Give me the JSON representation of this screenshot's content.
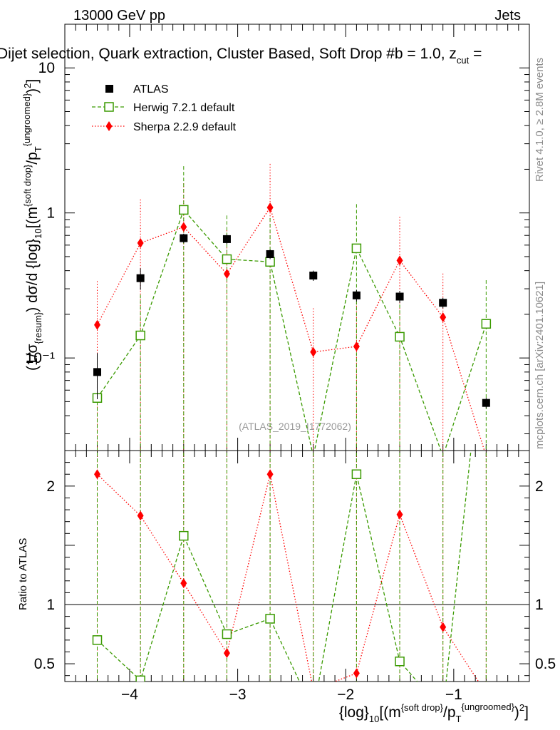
{
  "header": {
    "left": "13000 GeV pp",
    "right": "Jets",
    "title": "Dijet selection, Quark extraction, Cluster Based, Soft Drop #b = 1.0, z",
    "title_sub": "cut",
    "title_tail": " ="
  },
  "side_labels": {
    "rivet": "Rivet 4.1.0, ≥ 2.8M events",
    "mcplots": "mcplots.cern.ch [arXiv:2401.10621]"
  },
  "watermark": "(ATLAS_2019_I1772062)",
  "legend": {
    "atlas": "ATLAS",
    "herwig": "Herwig 7.2.1 default",
    "sherpa": "Sherpa 2.2.9 default"
  },
  "y_axis_main": {
    "p1": "(1/σ",
    "p1_sub": "{resum}",
    "p2": ") dσ/d {log}",
    "p2_sub": "10",
    "p3": "[(m",
    "p3_sup": "{soft drop}",
    "p4": "/p",
    "p4_sub": "T",
    "p4_sup": "{ungroomed}",
    "p5": ")",
    "p5_sup": "2",
    "p6": "]"
  },
  "y_axis_ratio": "Ratio to ATLAS",
  "x_axis": {
    "p1": "{log}",
    "p1_sub": "10",
    "p2": "[(m",
    "p2_sup": "{soft drop}",
    "p3": "/p",
    "p3_sub": "T",
    "p3_sup": "{ungroomed}",
    "p4": ")",
    "p4_sup": "2",
    "p5": "]"
  },
  "colors": {
    "atlas": "#000000",
    "herwig": "#3a9a00",
    "sherpa": "#ff0000",
    "vline": "#8b4513"
  },
  "chart_data": {
    "type": "scatter",
    "x": [
      -4.3,
      -3.9,
      -3.5,
      -3.1,
      -2.7,
      -2.3,
      -1.9,
      -1.5,
      -1.1,
      -0.7
    ],
    "xlim": [
      -4.6,
      -0.3
    ],
    "ylim": [
      0.023,
      20
    ],
    "yscale": "log",
    "ratio_ylim": [
      0.35,
      2.3
    ],
    "x_ticks": [
      -4,
      -3,
      -2,
      -1
    ],
    "x_tick_labels": [
      "−4",
      "−3",
      "−2",
      "−1"
    ],
    "y_ticks": [
      0.1,
      1,
      10
    ],
    "y_tick_labels": [
      "10⁻¹",
      "1",
      "10"
    ],
    "ratio_ticks": [
      0.5,
      1,
      2
    ],
    "ratio_tick_labels": [
      "0.5",
      "1",
      "2"
    ],
    "series": [
      {
        "name": "ATLAS",
        "marker": "square-filled",
        "values": [
          0.08,
          0.355,
          0.67,
          0.66,
          0.52,
          0.37,
          0.27,
          0.265,
          0.24,
          0.049
        ],
        "err": [
          0.028,
          0.06,
          0.05,
          0.05,
          0.04,
          0.03,
          0.025,
          0.025,
          0.02,
          0.004
        ]
      },
      {
        "name": "Herwig 7.2.1 default",
        "marker": "square-open",
        "values": [
          0.053,
          0.143,
          1.05,
          0.48,
          0.46,
          0.021,
          0.57,
          0.14,
          0.021,
          0.172
        ],
        "err_up": [
          0.05,
          0.13,
          1.05,
          0.48,
          0.46,
          0.0,
          0.58,
          0.14,
          0.0,
          0.172
        ]
      },
      {
        "name": "Sherpa 2.2.9 default",
        "marker": "diamond-filled",
        "values": [
          0.169,
          0.62,
          0.8,
          0.38,
          1.09,
          0.11,
          0.12,
          0.47,
          0.191,
          0.021
        ],
        "err_up": [
          0.169,
          0.62,
          0.8,
          0.38,
          1.09,
          0.11,
          0.12,
          0.47,
          0.191,
          0.0
        ]
      }
    ],
    "ratio_series": [
      {
        "name": "Herwig 7.2.1 default",
        "values": [
          0.7,
          0.36,
          1.58,
          0.75,
          0.88,
          0.1,
          2.1,
          0.52,
          0.1,
          3.5
        ]
      },
      {
        "name": "Sherpa 2.2.9 default",
        "values": [
          2.1,
          1.75,
          1.18,
          0.59,
          2.1,
          0.28,
          0.42,
          1.76,
          0.81,
          0.25
        ]
      }
    ]
  }
}
